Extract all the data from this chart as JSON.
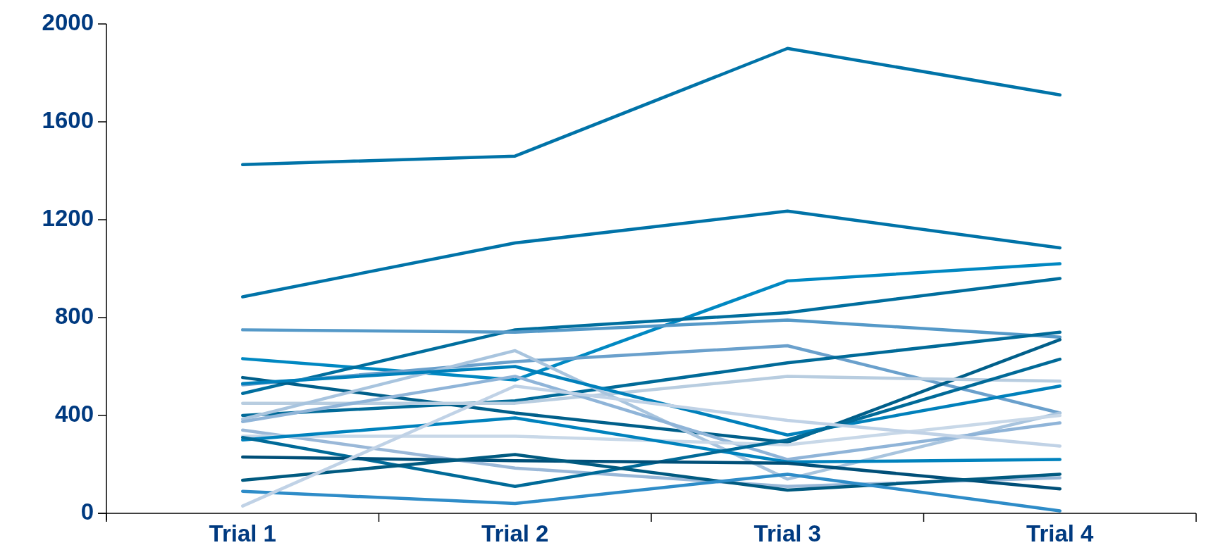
{
  "chart_data": {
    "type": "line",
    "categories": [
      "Trial 1",
      "Trial 2",
      "Trial 3",
      "Trial 4"
    ],
    "ylim": [
      0,
      2000
    ],
    "yticks": [
      0,
      400,
      800,
      1200,
      1600,
      2000
    ],
    "grid": false,
    "marker": "none",
    "line_style": "solid",
    "series": [
      {
        "color": "#0073a8",
        "values": [
          1425,
          1460,
          1900,
          1710
        ]
      },
      {
        "color": "#0073a8",
        "values": [
          885,
          1105,
          1235,
          1085
        ]
      },
      {
        "color": "#0088c2",
        "values": [
          632,
          545,
          950,
          1020
        ]
      },
      {
        "color": "#006e9e",
        "values": [
          490,
          750,
          820,
          960
        ]
      },
      {
        "color": "#5599c8",
        "values": [
          750,
          740,
          790,
          720
        ]
      },
      {
        "color": "#6aa0cc",
        "values": [
          525,
          620,
          685,
          410
        ]
      },
      {
        "color": "#006a98",
        "values": [
          400,
          460,
          615,
          740
        ]
      },
      {
        "color": "#005f8a",
        "values": [
          555,
          410,
          290,
          710
        ]
      },
      {
        "color": "#b8cde0",
        "values": [
          450,
          450,
          560,
          540
        ]
      },
      {
        "color": "#a8c4de",
        "values": [
          385,
          665,
          140,
          410
        ]
      },
      {
        "color": "#8fb4d8",
        "values": [
          375,
          560,
          220,
          370
        ]
      },
      {
        "color": "#0080bb",
        "values": [
          530,
          600,
          320,
          520
        ]
      },
      {
        "color": "#9ab8d8",
        "values": [
          340,
          185,
          110,
          145
        ]
      },
      {
        "color": "#c8d8e8",
        "values": [
          315,
          315,
          280,
          400
        ]
      },
      {
        "color": "#0082bd",
        "values": [
          300,
          390,
          210,
          220
        ]
      },
      {
        "color": "#006a98",
        "values": [
          310,
          110,
          300,
          630
        ]
      },
      {
        "color": "#004f78",
        "values": [
          230,
          215,
          205,
          100
        ]
      },
      {
        "color": "#005a80",
        "values": [
          135,
          240,
          95,
          160
        ]
      },
      {
        "color": "#2e8cc8",
        "values": [
          90,
          40,
          160,
          10
        ]
      },
      {
        "color": "#c0d2e6",
        "values": [
          30,
          520,
          380,
          275
        ]
      }
    ]
  }
}
